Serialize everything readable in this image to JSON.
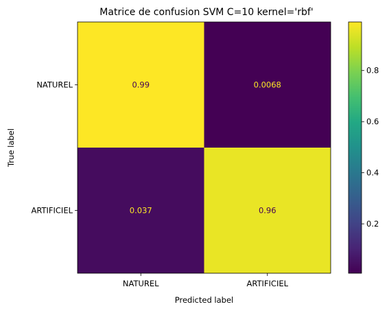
{
  "chart_data": {
    "type": "heatmap",
    "title": "Matrice de confusion SVM C=10 kernel='rbf'",
    "xlabel": "Predicted label",
    "ylabel": "True label",
    "x_categories": [
      "NATUREL",
      "ARTIFICIEL"
    ],
    "y_categories": [
      "NATUREL",
      "ARTIFICIEL"
    ],
    "values": [
      [
        0.99,
        0.0068
      ],
      [
        0.037,
        0.96
      ]
    ],
    "value_labels": [
      [
        "0.99",
        "0.0068"
      ],
      [
        "0.037",
        "0.96"
      ]
    ],
    "colormap": "viridis",
    "colorbar": {
      "min": 0.0068,
      "max": 0.99,
      "ticks": [
        0.2,
        0.4,
        0.6,
        0.8
      ],
      "tick_labels": [
        "0.2",
        "0.4",
        "0.6",
        "0.8"
      ]
    },
    "text_colors": {
      "on_dark": "#fde725",
      "on_light": "#440154"
    }
  }
}
